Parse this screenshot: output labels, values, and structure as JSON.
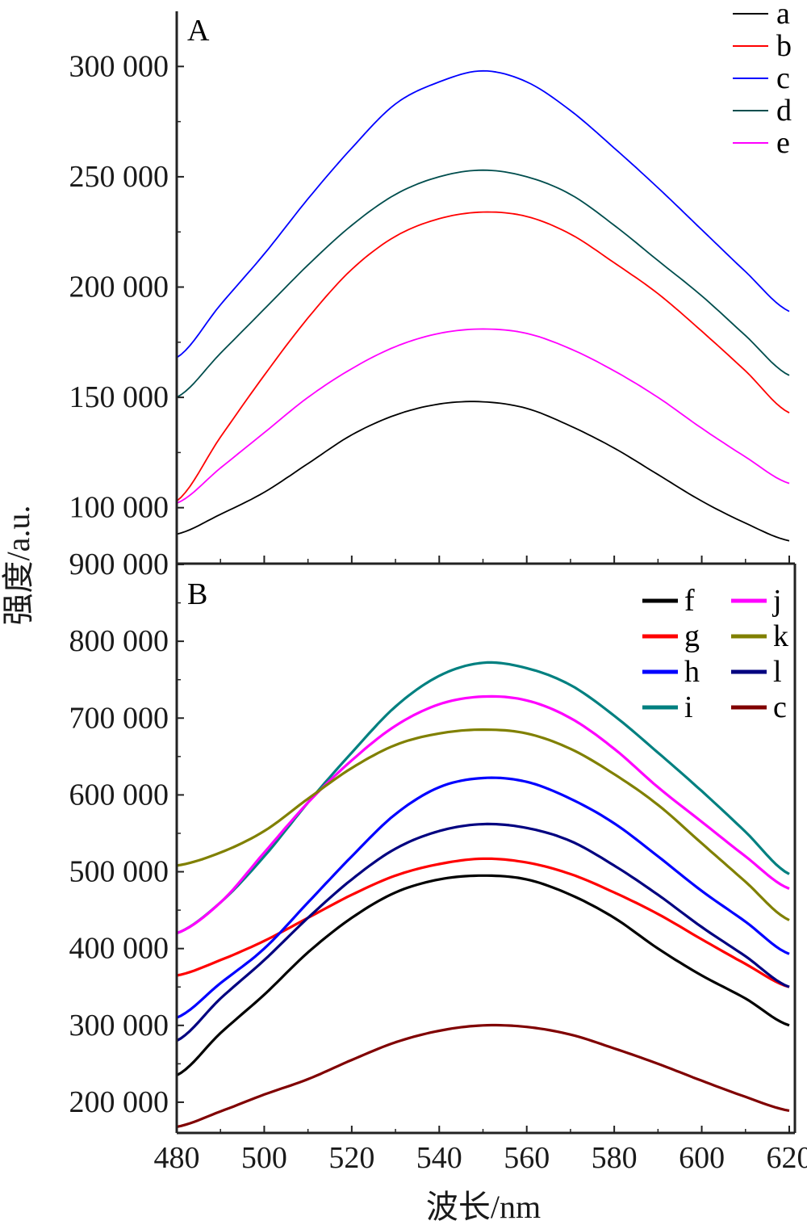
{
  "figure": {
    "xlabel": "波长/nm",
    "ylabel": "强度/a.u."
  },
  "chart_data": [
    {
      "type": "line",
      "panel_label": "A",
      "xlabel": "波长/nm",
      "ylabel": "强度/a.u.",
      "xlim": [
        480,
        620
      ],
      "ylim": [
        75000,
        325000
      ],
      "xticks": [
        480,
        500,
        520,
        540,
        560,
        580,
        600,
        620
      ],
      "xtick_labels": [
        "480",
        "500",
        "520",
        "540",
        "560",
        "580",
        "600",
        "620"
      ],
      "yticks": [
        100000,
        150000,
        200000,
        250000,
        300000
      ],
      "ytick_labels": [
        "100 000",
        "150 000",
        "200 000",
        "250 000",
        "300 000"
      ],
      "grid": false,
      "legend_position": "top-right",
      "x": [
        480,
        490,
        500,
        510,
        520,
        530,
        540,
        550,
        560,
        570,
        580,
        590,
        600,
        610,
        620
      ],
      "series": [
        {
          "name": "a",
          "color": "#000000",
          "values": [
            88000,
            97000,
            107000,
            120000,
            133000,
            142000,
            147000,
            148000,
            145000,
            137000,
            127000,
            115000,
            103000,
            93000,
            85000
          ]
        },
        {
          "name": "b",
          "color": "#ff0000",
          "values": [
            103000,
            132000,
            160000,
            186000,
            208000,
            223000,
            231000,
            234000,
            232000,
            224000,
            211000,
            197000,
            180000,
            162000,
            143000
          ]
        },
        {
          "name": "c",
          "color": "#0000ff",
          "values": [
            168000,
            192000,
            215000,
            240000,
            263000,
            283000,
            293000,
            298000,
            293000,
            280000,
            263000,
            245000,
            226000,
            207000,
            189000
          ]
        },
        {
          "name": "d",
          "color": "#004d4d",
          "values": [
            150000,
            170000,
            190000,
            210000,
            228000,
            242000,
            250000,
            253000,
            250000,
            242000,
            228000,
            212000,
            196000,
            178000,
            160000
          ]
        },
        {
          "name": "e",
          "color": "#ff00ff",
          "values": [
            102000,
            118000,
            134000,
            150000,
            163000,
            173000,
            179000,
            181000,
            179000,
            172000,
            162000,
            150000,
            136000,
            123000,
            111000
          ]
        }
      ]
    },
    {
      "type": "line",
      "panel_label": "B",
      "xlabel": "波长/nm",
      "ylabel": "强度/a.u.",
      "xlim": [
        480,
        620
      ],
      "ylim": [
        160000,
        900000
      ],
      "xticks": [
        480,
        500,
        520,
        540,
        560,
        580,
        600,
        620
      ],
      "xtick_labels": [
        "480",
        "500",
        "520",
        "540",
        "560",
        "580",
        "600",
        "620"
      ],
      "yticks": [
        200000,
        300000,
        400000,
        500000,
        600000,
        700000,
        800000,
        900000
      ],
      "ytick_labels": [
        "200 000",
        "300 000",
        "400 000",
        "500 000",
        "600 000",
        "700 000",
        "800 000",
        "900 000"
      ],
      "grid": false,
      "legend_position": "top-right",
      "x": [
        480,
        490,
        500,
        510,
        520,
        530,
        540,
        550,
        560,
        570,
        580,
        590,
        600,
        610,
        620
      ],
      "series": [
        {
          "name": "f",
          "color": "#000000",
          "values": [
            235000,
            290000,
            340000,
            395000,
            440000,
            473000,
            490000,
            495000,
            490000,
            470000,
            440000,
            400000,
            365000,
            335000,
            300000
          ]
        },
        {
          "name": "g",
          "color": "#ff0000",
          "values": [
            365000,
            385000,
            410000,
            440000,
            470000,
            495000,
            510000,
            517000,
            512000,
            497000,
            473000,
            445000,
            412000,
            380000,
            350000
          ]
        },
        {
          "name": "h",
          "color": "#0000ff",
          "values": [
            310000,
            355000,
            400000,
            460000,
            520000,
            575000,
            610000,
            622000,
            617000,
            595000,
            563000,
            520000,
            475000,
            435000,
            393000
          ]
        },
        {
          "name": "i",
          "color": "#008080",
          "values": [
            420000,
            460000,
            520000,
            590000,
            655000,
            715000,
            755000,
            772000,
            765000,
            743000,
            703000,
            655000,
            605000,
            552000,
            497000
          ]
        },
        {
          "name": "j",
          "color": "#ff00ff",
          "values": [
            420000,
            460000,
            525000,
            590000,
            645000,
            690000,
            718000,
            728000,
            723000,
            700000,
            660000,
            610000,
            565000,
            520000,
            478000
          ]
        },
        {
          "name": "k",
          "color": "#808000",
          "values": [
            508000,
            525000,
            553000,
            595000,
            635000,
            665000,
            680000,
            685000,
            680000,
            660000,
            627000,
            587000,
            537000,
            487000,
            437000
          ]
        },
        {
          "name": "l",
          "color": "#000080",
          "values": [
            280000,
            335000,
            385000,
            440000,
            490000,
            530000,
            553000,
            562000,
            557000,
            540000,
            508000,
            470000,
            428000,
            390000,
            350000
          ]
        },
        {
          "name": "c",
          "color": "#800000",
          "values": [
            168000,
            188000,
            210000,
            230000,
            255000,
            278000,
            293000,
            300000,
            298000,
            288000,
            270000,
            250000,
            228000,
            207000,
            189000
          ]
        }
      ]
    }
  ]
}
